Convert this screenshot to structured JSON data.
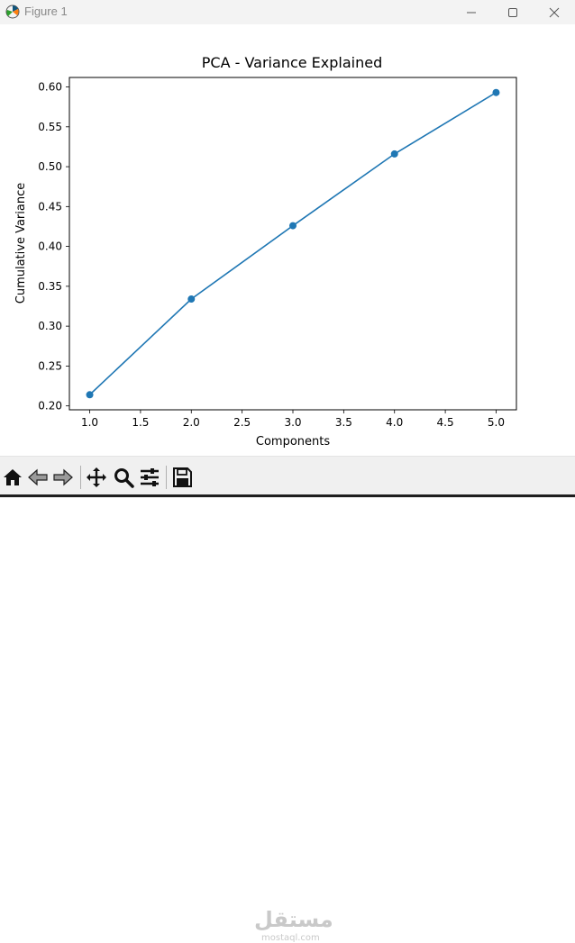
{
  "window": {
    "title": "Figure 1",
    "icons": {
      "app": "matplotlib-figure-icon",
      "minimize": "minimize-icon",
      "maximize": "maximize-icon",
      "close": "close-icon"
    }
  },
  "toolbar": {
    "items": [
      {
        "icon": "home-icon",
        "name": "home-button"
      },
      {
        "icon": "back-arrow-icon",
        "name": "back-button"
      },
      {
        "icon": "forward-arrow-icon",
        "name": "forward-button"
      },
      {
        "icon": "pan-icon",
        "name": "pan-button"
      },
      {
        "icon": "zoom-icon",
        "name": "zoom-button"
      },
      {
        "icon": "configure-subplots-icon",
        "name": "subplots-button"
      },
      {
        "icon": "save-icon",
        "name": "save-button"
      }
    ]
  },
  "watermark": {
    "arabic": "مستقل",
    "latin": "mostaql.com"
  },
  "chart_data": {
    "type": "line",
    "title": "PCA - Variance Explained",
    "xlabel": "Components",
    "ylabel": "Cumulative Variance",
    "x": [
      1,
      2,
      3,
      4,
      5
    ],
    "series": [
      {
        "values": [
          0.214,
          0.334,
          0.426,
          0.516,
          0.593
        ],
        "color": "#1f77b4",
        "marker": "circle"
      }
    ],
    "xlim": [
      0.8,
      5.2
    ],
    "ylim": [
      0.1951,
      0.6119
    ],
    "xticks": [
      "1.0",
      "1.5",
      "2.0",
      "2.5",
      "3.0",
      "3.5",
      "4.0",
      "4.5",
      "5.0"
    ],
    "yticks": [
      "0.20",
      "0.25",
      "0.30",
      "0.35",
      "0.40",
      "0.45",
      "0.50",
      "0.55",
      "0.60"
    ],
    "grid": false
  }
}
